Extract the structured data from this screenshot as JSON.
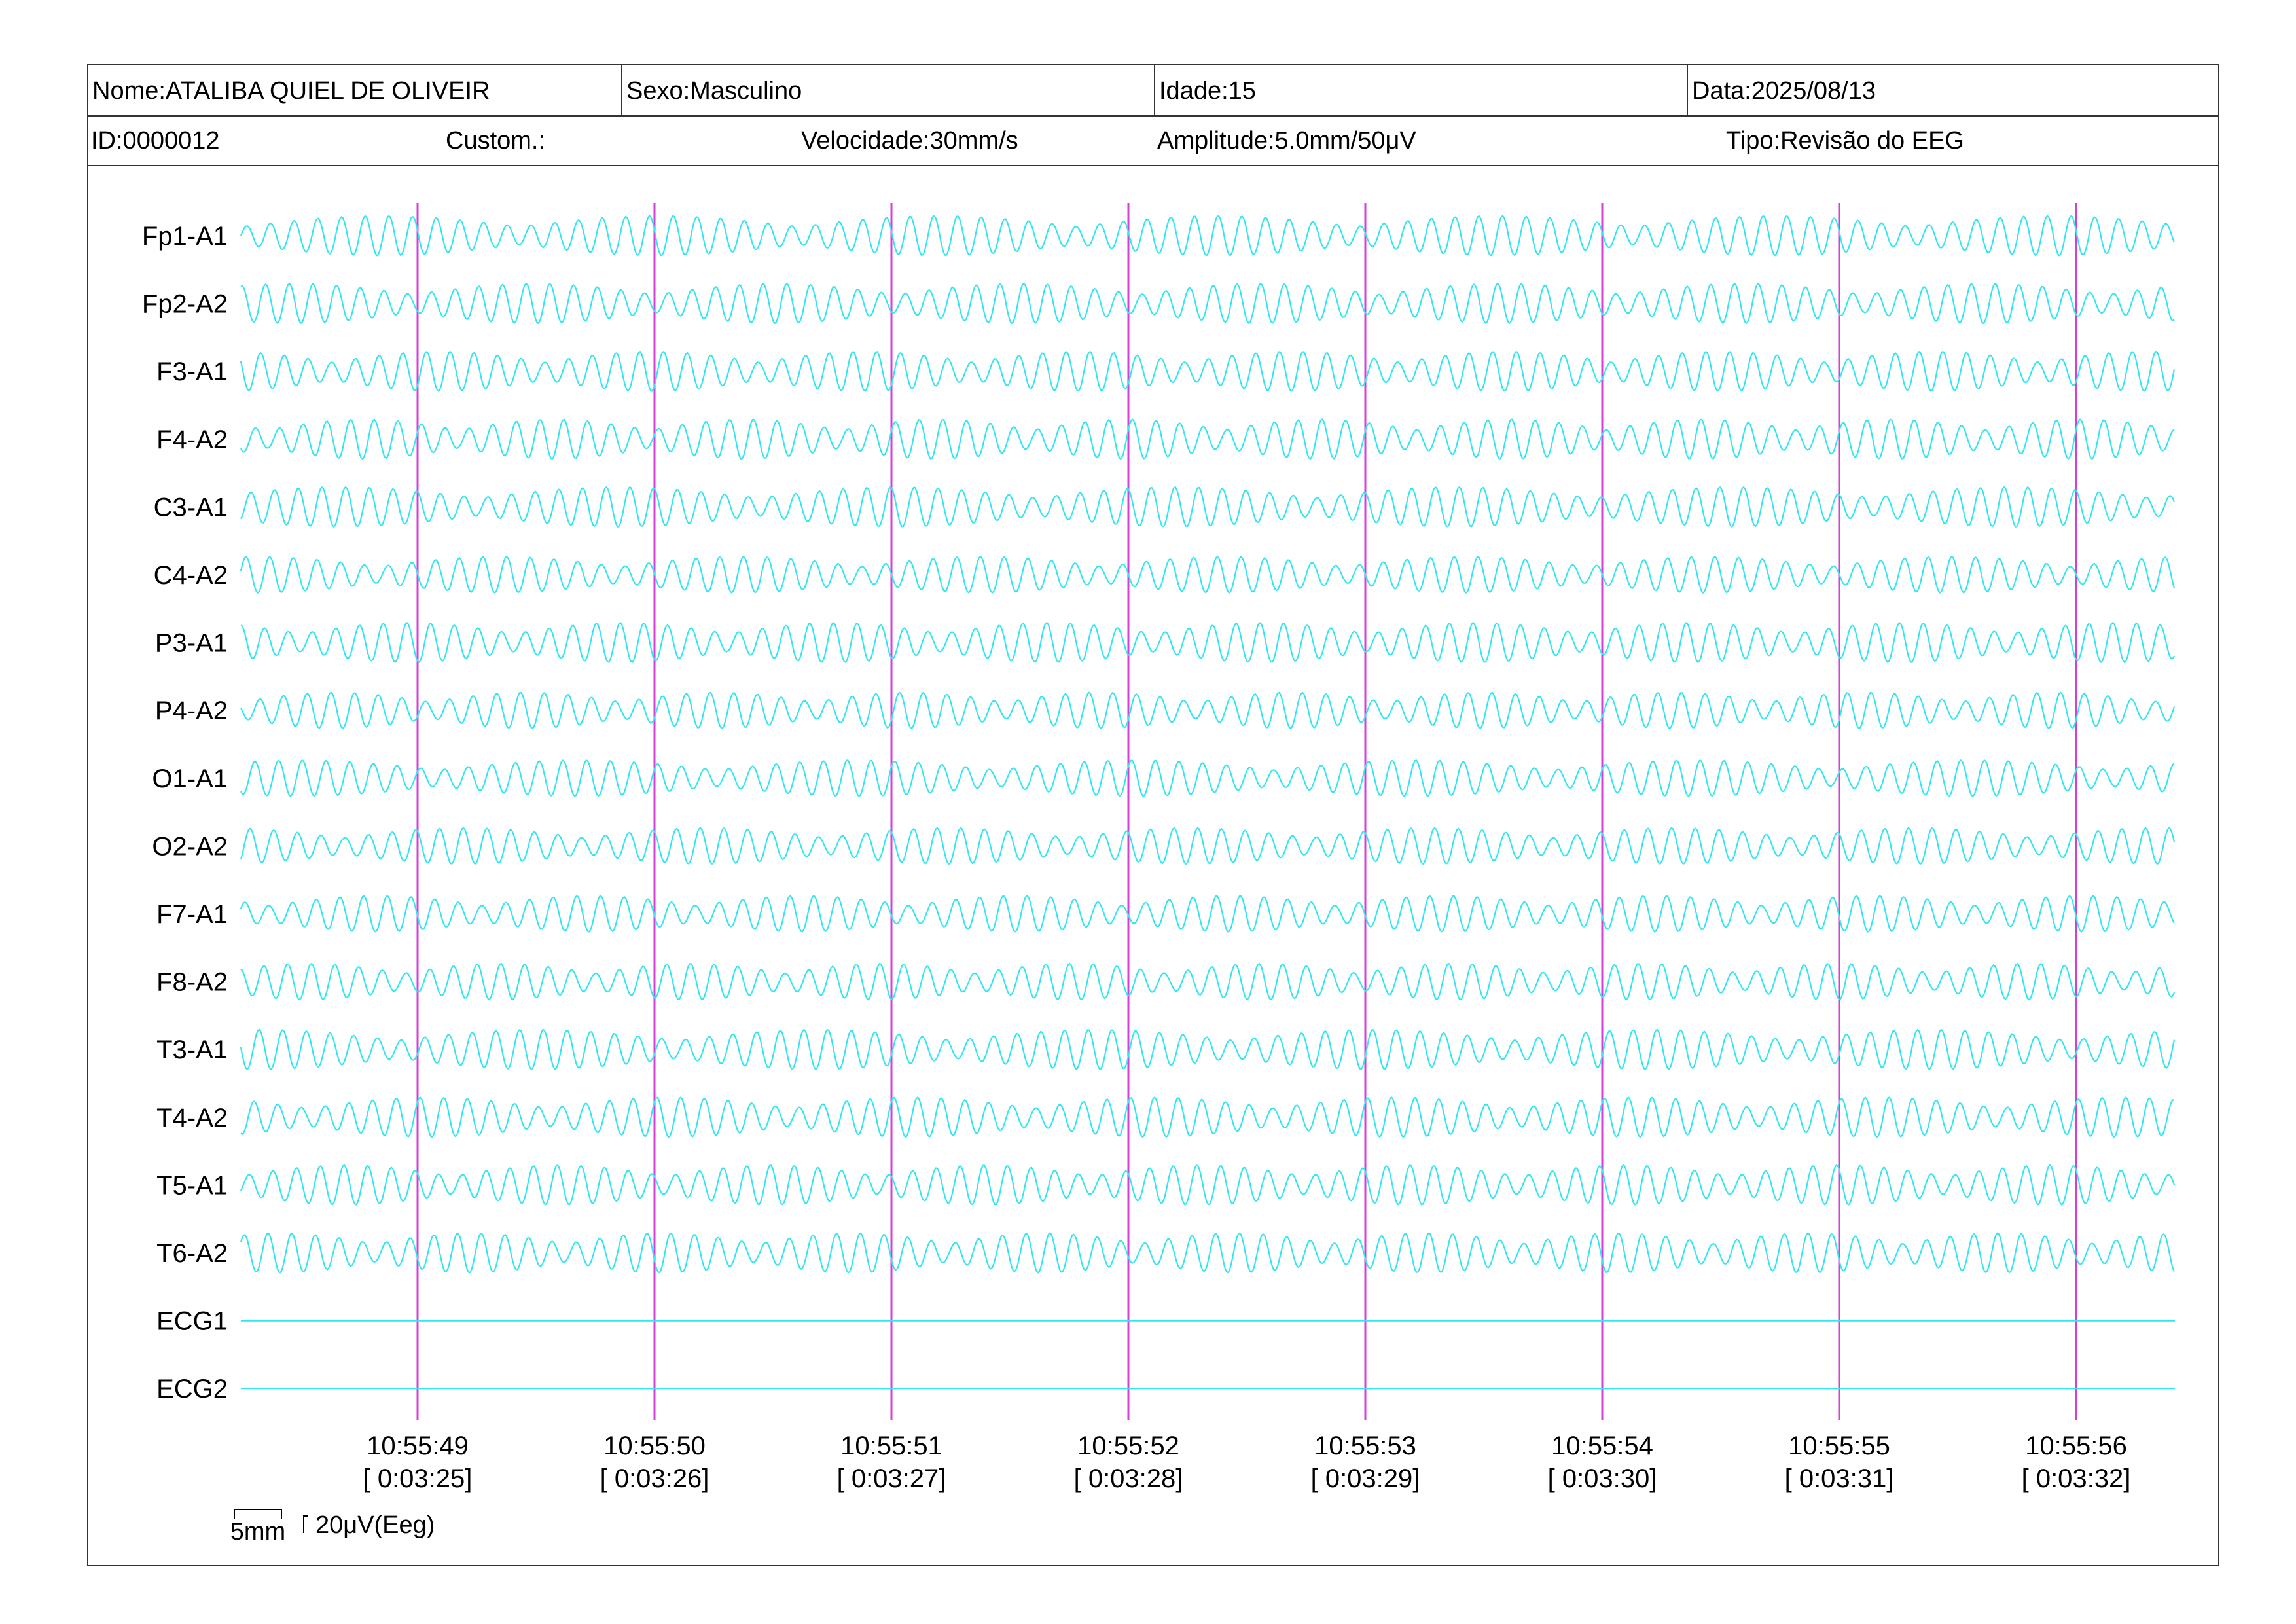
{
  "header": {
    "nome": "Nome:ATALIBA QUIEL DE OLIVEIR",
    "sexo": "Sexo:Masculino",
    "idade": "Idade:15",
    "data": "Data:2025/08/13",
    "id": "ID:0000012",
    "custom": "Custom.:",
    "velocidade": "Velocidade:30mm/s",
    "amplitude": "Amplitude:5.0mm/50μV",
    "tipo": "Tipo:Revisão do EEG"
  },
  "chart_data": {
    "type": "line",
    "title": "",
    "xlabel": "",
    "ylabel": "",
    "trace_color": "#33e6f0",
    "marker_color": "#d63fd6",
    "channels": [
      {
        "name": "Fp1-A1",
        "flat": false,
        "freq_hz": 10.0,
        "amp_uV": 55
      },
      {
        "name": "Fp2-A2",
        "flat": false,
        "freq_hz": 10.0,
        "amp_uV": 55
      },
      {
        "name": "F3-A1",
        "flat": false,
        "freq_hz": 10.0,
        "amp_uV": 55
      },
      {
        "name": "F4-A2",
        "flat": false,
        "freq_hz": 10.0,
        "amp_uV": 55
      },
      {
        "name": "C3-A1",
        "flat": false,
        "freq_hz": 10.0,
        "amp_uV": 55
      },
      {
        "name": "C4-A2",
        "flat": false,
        "freq_hz": 10.0,
        "amp_uV": 50
      },
      {
        "name": "P3-A1",
        "flat": false,
        "freq_hz": 10.0,
        "amp_uV": 55
      },
      {
        "name": "P4-A2",
        "flat": false,
        "freq_hz": 10.0,
        "amp_uV": 50
      },
      {
        "name": "O1-A1",
        "flat": false,
        "freq_hz": 10.0,
        "amp_uV": 50
      },
      {
        "name": "O2-A2",
        "flat": false,
        "freq_hz": 10.0,
        "amp_uV": 50
      },
      {
        "name": "F7-A1",
        "flat": false,
        "freq_hz": 10.0,
        "amp_uV": 50
      },
      {
        "name": "F8-A2",
        "flat": false,
        "freq_hz": 10.0,
        "amp_uV": 50
      },
      {
        "name": "T3-A1",
        "flat": false,
        "freq_hz": 10.0,
        "amp_uV": 55
      },
      {
        "name": "T4-A2",
        "flat": false,
        "freq_hz": 10.0,
        "amp_uV": 55
      },
      {
        "name": "T5-A1",
        "flat": false,
        "freq_hz": 10.0,
        "amp_uV": 55
      },
      {
        "name": "T6-A2",
        "flat": false,
        "freq_hz": 10.0,
        "amp_uV": 55
      },
      {
        "name": "ECG1",
        "flat": true,
        "freq_hz": 0,
        "amp_uV": 0
      },
      {
        "name": "ECG2",
        "flat": true,
        "freq_hz": 0,
        "amp_uV": 0
      }
    ],
    "seconds": [
      {
        "clock": "10:55:49",
        "elapsed": "[ 0:03:25]"
      },
      {
        "clock": "10:55:50",
        "elapsed": "[ 0:03:26]"
      },
      {
        "clock": "10:55:51",
        "elapsed": "[ 0:03:27]"
      },
      {
        "clock": "10:55:52",
        "elapsed": "[ 0:03:28]"
      },
      {
        "clock": "10:55:53",
        "elapsed": "[ 0:03:29]"
      },
      {
        "clock": "10:55:54",
        "elapsed": "[ 0:03:30]"
      },
      {
        "clock": "10:55:55",
        "elapsed": "[ 0:03:31]"
      },
      {
        "clock": "10:55:56",
        "elapsed": "[ 0:03:32]"
      }
    ],
    "scale_bar": {
      "time_label": "5mm",
      "amplitude_label": "20μV(Eeg)"
    }
  }
}
